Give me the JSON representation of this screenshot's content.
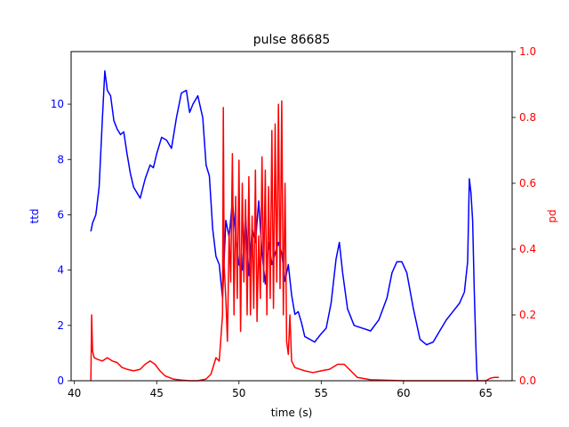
{
  "chart_data": {
    "type": "line",
    "title": "pulse 86685",
    "xlabel": "time (s)",
    "xlim": [
      39.8,
      66.6
    ],
    "x_ticks": [
      40,
      45,
      50,
      55,
      60,
      65
    ],
    "grid": false,
    "colors": {
      "left": "#0000ff",
      "right": "#ff0000",
      "axes": "#000000"
    },
    "left_axis": {
      "label": "ttd",
      "ylim": [
        0,
        11.9
      ],
      "ticks": [
        0,
        2,
        4,
        6,
        8,
        10
      ]
    },
    "right_axis": {
      "label": "pd",
      "ylim": [
        0,
        1.0
      ],
      "ticks": [
        0.0,
        0.2,
        0.4,
        0.6,
        0.8,
        1.0
      ]
    },
    "series": [
      {
        "axis": "left",
        "color": "#0000ff",
        "x": [
          41.0,
          41.1,
          41.3,
          41.5,
          41.7,
          41.85,
          42.0,
          42.2,
          42.4,
          42.6,
          42.8,
          43.0,
          43.2,
          43.4,
          43.6,
          43.8,
          44.0,
          44.3,
          44.6,
          44.8,
          45.0,
          45.3,
          45.6,
          45.9,
          46.2,
          46.5,
          46.8,
          47.0,
          47.2,
          47.5,
          47.8,
          48.0,
          48.2,
          48.4,
          48.6,
          48.8,
          49.0,
          49.2,
          49.4,
          49.6,
          49.8,
          50.0,
          50.2,
          50.4,
          50.6,
          50.8,
          51.0,
          51.2,
          51.4,
          51.6,
          51.8,
          52.0,
          52.2,
          52.4,
          52.6,
          52.8,
          53.0,
          53.2,
          53.4,
          53.6,
          53.8,
          54.0,
          54.3,
          54.6,
          55.0,
          55.3,
          55.6,
          55.9,
          56.1,
          56.3,
          56.6,
          57.0,
          57.5,
          58.0,
          58.5,
          59.0,
          59.3,
          59.6,
          59.9,
          60.2,
          60.6,
          61.0,
          61.4,
          61.8,
          62.2,
          62.6,
          63.0,
          63.4,
          63.7,
          63.9,
          64.0,
          64.1,
          64.2,
          64.3,
          64.4,
          64.45,
          64.5
        ],
        "y": [
          5.4,
          5.7,
          6.0,
          7.0,
          9.5,
          11.2,
          10.5,
          10.3,
          9.4,
          9.1,
          8.9,
          9.0,
          8.2,
          7.5,
          7.0,
          6.8,
          6.6,
          7.3,
          7.8,
          7.7,
          8.2,
          8.8,
          8.7,
          8.4,
          9.5,
          10.4,
          10.5,
          9.7,
          10.0,
          10.3,
          9.5,
          7.8,
          7.4,
          5.5,
          4.5,
          4.2,
          3.0,
          5.8,
          5.2,
          6.5,
          5.2,
          4.2,
          4.0,
          6.0,
          3.8,
          5.5,
          5.0,
          6.5,
          4.6,
          3.5,
          5.0,
          4.2,
          4.6,
          5.0,
          4.6,
          3.6,
          4.2,
          3.1,
          2.4,
          2.5,
          2.1,
          1.6,
          1.5,
          1.4,
          1.7,
          1.9,
          2.8,
          4.4,
          5.0,
          3.9,
          2.6,
          2.0,
          1.9,
          1.8,
          2.2,
          3.0,
          3.9,
          4.3,
          4.3,
          3.9,
          2.6,
          1.5,
          1.3,
          1.4,
          1.8,
          2.2,
          2.5,
          2.8,
          3.2,
          4.3,
          7.3,
          6.8,
          5.8,
          3.3,
          1.2,
          0.4,
          0.0
        ]
      },
      {
        "axis": "right",
        "color": "#ff0000",
        "x": [
          41.0,
          41.05,
          41.1,
          41.2,
          41.4,
          41.7,
          42.0,
          42.3,
          42.6,
          42.9,
          43.2,
          43.6,
          44.0,
          44.3,
          44.6,
          44.9,
          45.2,
          45.5,
          46.0,
          46.5,
          47.0,
          47.5,
          48.0,
          48.3,
          48.6,
          48.8,
          49.0,
          49.05,
          49.1,
          49.2,
          49.3,
          49.4,
          49.5,
          49.6,
          49.7,
          49.8,
          49.9,
          50.0,
          50.1,
          50.2,
          50.3,
          50.4,
          50.5,
          50.6,
          50.7,
          50.8,
          50.9,
          51.0,
          51.1,
          51.2,
          51.3,
          51.4,
          51.5,
          51.6,
          51.7,
          51.8,
          51.9,
          52.0,
          52.1,
          52.2,
          52.3,
          52.4,
          52.5,
          52.6,
          52.7,
          52.8,
          52.9,
          53.0,
          53.1,
          53.2,
          53.4,
          53.7,
          54.0,
          54.5,
          55.0,
          55.5,
          56.0,
          56.4,
          56.8,
          57.2,
          58.0,
          60.0,
          62.0,
          64.0,
          65.0,
          65.3,
          65.5,
          65.8
        ],
        "y": [
          0.0,
          0.2,
          0.09,
          0.07,
          0.065,
          0.06,
          0.07,
          0.06,
          0.055,
          0.04,
          0.035,
          0.03,
          0.035,
          0.05,
          0.06,
          0.05,
          0.03,
          0.015,
          0.005,
          0.002,
          0.0,
          0.0,
          0.005,
          0.02,
          0.07,
          0.06,
          0.2,
          0.83,
          0.35,
          0.25,
          0.12,
          0.45,
          0.3,
          0.69,
          0.2,
          0.56,
          0.25,
          0.67,
          0.15,
          0.6,
          0.3,
          0.55,
          0.2,
          0.62,
          0.2,
          0.5,
          0.22,
          0.64,
          0.18,
          0.44,
          0.25,
          0.68,
          0.3,
          0.64,
          0.2,
          0.59,
          0.25,
          0.76,
          0.22,
          0.78,
          0.3,
          0.84,
          0.28,
          0.85,
          0.2,
          0.6,
          0.12,
          0.08,
          0.2,
          0.06,
          0.04,
          0.035,
          0.03,
          0.025,
          0.03,
          0.035,
          0.05,
          0.05,
          0.03,
          0.01,
          0.003,
          0.0,
          0.0,
          0.0,
          0.0,
          0.008,
          0.01,
          0.01
        ]
      }
    ]
  }
}
